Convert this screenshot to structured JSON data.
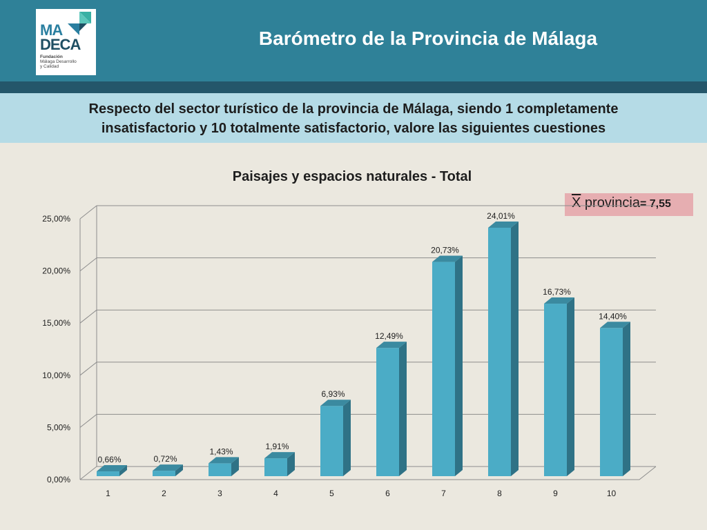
{
  "header": {
    "title": "Barómetro de la Provincia de Málaga",
    "logo": {
      "line1": "MA",
      "line2": "DECA",
      "org_line1": "Fundación",
      "org_line2": "Málaga Desarrollo",
      "org_line3": "y Calidad"
    }
  },
  "question": {
    "line1": "Respecto del sector turístico de la provincia de Málaga, siendo 1 completamente",
    "line2": "insatisfactorio y 10 totalmente satisfactorio, valore las siguientes cuestiones"
  },
  "badge": {
    "symbol": "X",
    "label": "provincia",
    "value": "= 7,55"
  },
  "colors": {
    "header": "#2f8198",
    "header_strip": "#24566a",
    "band": "#b5dbe6",
    "background": "#ebe8df",
    "bar_front": "#4bacc6",
    "bar_side": "#2f7286",
    "bar_top": "#3b8aa0",
    "badge": "#e6aeb1"
  },
  "chart_data": {
    "type": "bar",
    "title": "Paisajes y espacios naturales - Total",
    "categories": [
      "1",
      "2",
      "3",
      "4",
      "5",
      "6",
      "7",
      "8",
      "9",
      "10"
    ],
    "values": [
      0.66,
      0.72,
      1.43,
      1.91,
      6.93,
      12.49,
      20.73,
      24.01,
      16.73,
      14.4
    ],
    "value_labels": [
      "0,66%",
      "0,72%",
      "1,43%",
      "1,91%",
      "6,93%",
      "12,49%",
      "20,73%",
      "24,01%",
      "16,73%",
      "14,40%"
    ],
    "y_ticks": [
      0,
      5,
      10,
      15,
      20,
      25
    ],
    "y_tick_labels": [
      "0,00%",
      "5,00%",
      "10,00%",
      "15,00%",
      "20,00%",
      "25,00%"
    ],
    "ylim": [
      0,
      25
    ],
    "xlabel": "",
    "ylabel": "",
    "grid": true,
    "legend": "none",
    "style": "3d-column"
  }
}
